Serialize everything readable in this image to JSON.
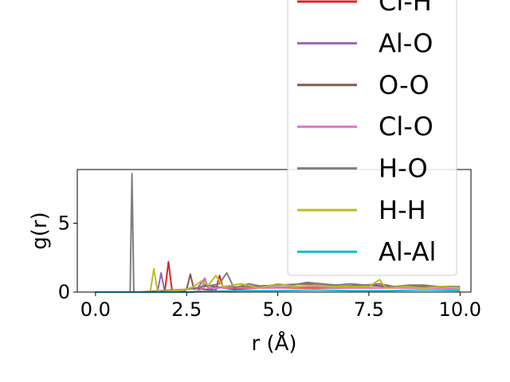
{
  "chart_data": {
    "type": "line",
    "title": "",
    "xlabel": "r (Å)",
    "ylabel": "g(r)",
    "xlim": [
      -0.5,
      10.3
    ],
    "ylim": [
      0,
      8.9
    ],
    "x_ticks": [
      0.0,
      2.5,
      5.0,
      7.5,
      10.0
    ],
    "x_tick_labels": [
      "0.0",
      "2.5",
      "5.0",
      "7.5",
      "10.0"
    ],
    "y_ticks": [
      0,
      5
    ],
    "y_tick_labels": [
      "0",
      "5"
    ],
    "grid": false,
    "legend_position": "upper-right (partially clipped at top)",
    "series": [
      {
        "name": "Cl-H",
        "color": "#d62728",
        "x": [
          0,
          1.8,
          1.9,
          2.0,
          2.1,
          2.2,
          2.6,
          3.0,
          3.3,
          3.4,
          3.5,
          3.8,
          4.5,
          5.5,
          6.5,
          7.5,
          8.5,
          9.5,
          10.0
        ],
        "y": [
          0,
          0,
          0,
          2.2,
          0.1,
          0,
          0.3,
          0.2,
          0.1,
          1.2,
          0.3,
          0.2,
          0.3,
          0.3,
          0.3,
          0.3,
          0.3,
          0.3,
          0.2
        ]
      },
      {
        "name": "Al-O",
        "color": "#9467bd",
        "x": [
          0,
          1.6,
          1.7,
          1.8,
          1.9,
          2.0,
          2.8,
          3.0,
          3.1,
          3.6,
          4.6,
          5.6,
          6.6,
          7.6,
          8.6,
          9.6,
          10.0
        ],
        "y": [
          0,
          0,
          0,
          1.4,
          0,
          0,
          0.3,
          1.0,
          0.2,
          0.4,
          0.3,
          0.4,
          0.3,
          0.3,
          0.4,
          0.3,
          0.2
        ]
      },
      {
        "name": "O-O",
        "color": "#8c564b",
        "x": [
          0,
          2.4,
          2.5,
          2.6,
          2.7,
          3.0,
          3.5,
          4.2,
          5.0,
          5.8,
          6.6,
          7.4,
          8.2,
          9.0,
          9.8,
          10.0
        ],
        "y": [
          0,
          0,
          0.2,
          1.3,
          0.2,
          0.5,
          0.3,
          0.4,
          0.5,
          0.6,
          0.4,
          0.5,
          0.4,
          0.4,
          0.4,
          0.3
        ]
      },
      {
        "name": "Cl-O",
        "color": "#e377c2",
        "x": [
          0,
          2.7,
          2.9,
          3.0,
          3.1,
          3.3,
          4.0,
          5.0,
          6.0,
          7.0,
          8.0,
          9.0,
          10.0
        ],
        "y": [
          0,
          0,
          0.2,
          0.9,
          0.3,
          0.3,
          0.3,
          0.3,
          0.4,
          0.3,
          0.3,
          0.3,
          0.2
        ]
      },
      {
        "name": "H-O",
        "color": "#7f7f7f",
        "x": [
          0,
          0.85,
          0.95,
          1.0,
          1.05,
          1.15,
          2.5,
          3.0,
          3.4,
          3.6,
          3.8,
          4.2,
          4.6,
          5.0,
          5.4,
          5.8,
          6.2,
          6.6,
          7.0,
          7.4,
          7.8,
          8.2,
          8.6,
          9.0,
          9.4,
          9.8,
          10.0
        ],
        "y": [
          0,
          0,
          0,
          8.6,
          0,
          0,
          0.2,
          0.4,
          0.6,
          1.4,
          0.3,
          0.6,
          0.4,
          0.5,
          0.5,
          0.7,
          0.6,
          0.5,
          0.6,
          0.5,
          0.6,
          0.4,
          0.5,
          0.5,
          0.4,
          0.4,
          0.4
        ]
      },
      {
        "name": "H-H",
        "color": "#bcbd22",
        "x": [
          0,
          1.5,
          1.6,
          1.7,
          1.8,
          2.5,
          2.7,
          2.9,
          3.1,
          3.3,
          3.5,
          4.0,
          4.5,
          5.0,
          5.5,
          6.0,
          6.5,
          7.0,
          7.5,
          7.8,
          7.9,
          8.0,
          8.5,
          9.0,
          9.5,
          10.0
        ],
        "y": [
          0,
          0,
          1.7,
          0.1,
          0,
          0.2,
          0.4,
          0.8,
          0.5,
          1.2,
          0.4,
          0.6,
          0.3,
          0.6,
          0.4,
          0.5,
          0.4,
          0.4,
          0.4,
          0.9,
          0.5,
          0.3,
          0.4,
          0.3,
          0.4,
          0.3
        ]
      },
      {
        "name": "Al-Al",
        "color": "#17becf",
        "x": [
          0,
          2.5,
          3.0,
          4.0,
          5.0,
          6.0,
          7.0,
          8.0,
          9.0,
          10.0
        ],
        "y": [
          0,
          0,
          0.05,
          0.1,
          0.1,
          0.15,
          0.1,
          0.1,
          0.15,
          0.1
        ]
      }
    ]
  }
}
